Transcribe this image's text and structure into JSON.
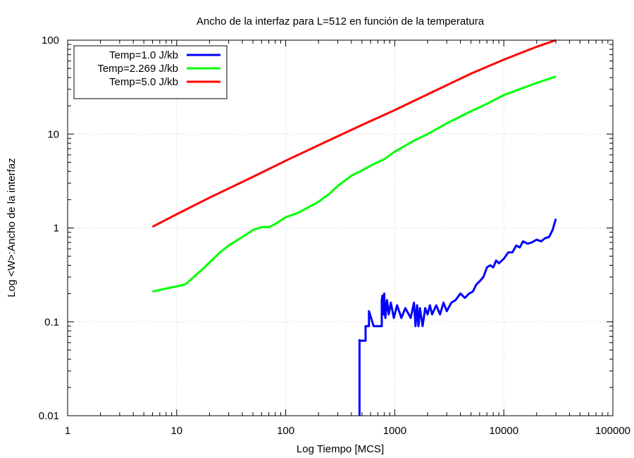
{
  "chart_data": {
    "type": "line",
    "title": "Ancho de la interfaz para L=512 en función de la temperatura",
    "xlabel": "Log Tiempo [MCS]",
    "ylabel": "Log <W>:Ancho de la interfaz",
    "x_scale": "log",
    "y_scale": "log",
    "xlim": [
      1,
      100000
    ],
    "ylim": [
      0.01,
      100
    ],
    "x_ticks": [
      1,
      10,
      100,
      1000,
      10000,
      100000
    ],
    "x_tick_labels": [
      "1",
      "10",
      "100",
      "1000",
      "10000",
      "100000"
    ],
    "y_ticks": [
      0.01,
      0.1,
      1,
      10,
      100
    ],
    "y_tick_labels": [
      "0.01",
      "0.1",
      "1",
      "10",
      "100"
    ],
    "grid": true,
    "legend_position": "top-left",
    "series": [
      {
        "name": "Temp=1.0 J/kb",
        "color": "#0000ff",
        "x": [
          475,
          475,
          475,
          540,
          540,
          580,
          580,
          640,
          640,
          760,
          760,
          770,
          790,
          800,
          820,
          850,
          880,
          920,
          980,
          1050,
          1150,
          1250,
          1400,
          1500,
          1550,
          1600,
          1650,
          1700,
          1800,
          1900,
          2000,
          2100,
          2200,
          2400,
          2600,
          2800,
          3000,
          3300,
          3600,
          4000,
          4400,
          4800,
          5200,
          5600,
          6000,
          6500,
          7000,
          7500,
          8000,
          8500,
          9000,
          10000,
          11000,
          12000,
          13000,
          14000,
          15000,
          16500,
          18000,
          20000,
          22000,
          24000,
          26000,
          28000,
          30000
        ],
        "y": [
          0.01,
          0.064,
          0.063,
          0.063,
          0.09,
          0.09,
          0.13,
          0.09,
          0.09,
          0.09,
          0.17,
          0.19,
          0.12,
          0.2,
          0.11,
          0.17,
          0.12,
          0.16,
          0.11,
          0.15,
          0.11,
          0.14,
          0.11,
          0.16,
          0.09,
          0.15,
          0.09,
          0.14,
          0.09,
          0.14,
          0.12,
          0.15,
          0.12,
          0.15,
          0.12,
          0.16,
          0.13,
          0.16,
          0.17,
          0.2,
          0.18,
          0.2,
          0.21,
          0.25,
          0.27,
          0.3,
          0.38,
          0.4,
          0.38,
          0.45,
          0.42,
          0.47,
          0.55,
          0.55,
          0.65,
          0.62,
          0.72,
          0.68,
          0.7,
          0.75,
          0.72,
          0.78,
          0.8,
          0.95,
          1.25
        ]
      },
      {
        "name": "Temp=2.269 J/kb",
        "color": "#00ff00",
        "x": [
          6,
          12,
          18,
          25,
          30,
          40,
          50,
          60,
          70,
          80,
          100,
          130,
          160,
          200,
          250,
          300,
          400,
          500,
          600,
          800,
          1000,
          1500,
          2000,
          3000,
          5000,
          7000,
          10000,
          15000,
          20000,
          30000
        ],
        "y": [
          0.21,
          0.25,
          0.38,
          0.55,
          0.65,
          0.8,
          0.95,
          1.02,
          1.02,
          1.1,
          1.3,
          1.45,
          1.65,
          1.9,
          2.3,
          2.8,
          3.6,
          4.1,
          4.6,
          5.4,
          6.5,
          8.5,
          10.0,
          13.0,
          17.5,
          21.0,
          26.0,
          31.0,
          35.0,
          41.0
        ]
      },
      {
        "name": "Temp=5.0 J/kb",
        "color": "#ff0000",
        "x": [
          6,
          10,
          20,
          50,
          100,
          200,
          500,
          1000,
          2000,
          5000,
          10000,
          20000,
          30000
        ],
        "y": [
          1.03,
          1.4,
          2.1,
          3.5,
          5.2,
          7.6,
          12.5,
          18.0,
          26.5,
          44.0,
          62.0,
          85.0,
          100.0
        ]
      }
    ]
  }
}
